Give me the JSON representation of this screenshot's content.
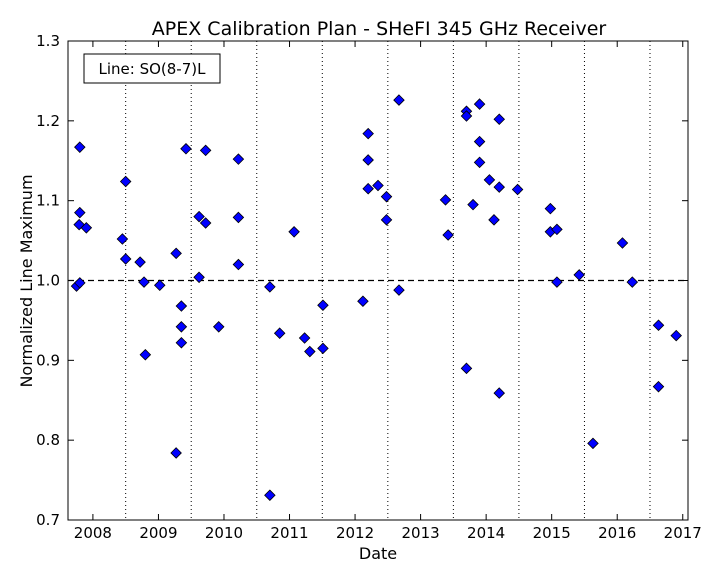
{
  "chart_data": {
    "type": "scatter",
    "title": "APEX Calibration Plan - SHeFI 345 GHz Receiver",
    "xlabel": "Date",
    "ylabel": "Normalized Line Maximum",
    "legend_box": "Line: SO(8-7)L",
    "legend_placement": "top-left",
    "xlim": [
      2007.62,
      2017.08
    ],
    "ylim": [
      0.7,
      1.3
    ],
    "x_ticks": [
      2008,
      2009,
      2010,
      2011,
      2012,
      2013,
      2014,
      2015,
      2016,
      2017
    ],
    "x_tick_labels": [
      "2008",
      "2009",
      "2010",
      "2011",
      "2012",
      "2013",
      "2014",
      "2015",
      "2016",
      "2017"
    ],
    "y_ticks": [
      0.7,
      0.8,
      0.9,
      1.0,
      1.1,
      1.2,
      1.3
    ],
    "y_tick_labels": [
      "0.7",
      "0.8",
      "0.9",
      "1.0",
      "1.1",
      "1.2",
      "1.3"
    ],
    "vertical_dotted_lines": [
      2008.5,
      2009.5,
      2010.5,
      2011.5,
      2012.5,
      2013.5,
      2014.5,
      2015.5,
      2016.5
    ],
    "reference_line": {
      "y": 1.0,
      "style": "dashed"
    },
    "grid": false,
    "marker": "diamond",
    "marker_color": "#0000ff",
    "points": [
      {
        "x": 2007.75,
        "y": 0.993
      },
      {
        "x": 2007.8,
        "y": 0.997
      },
      {
        "x": 2007.79,
        "y": 1.07
      },
      {
        "x": 2007.8,
        "y": 1.085
      },
      {
        "x": 2007.8,
        "y": 1.167
      },
      {
        "x": 2007.9,
        "y": 1.066
      },
      {
        "x": 2008.45,
        "y": 1.052
      },
      {
        "x": 2008.5,
        "y": 1.124
      },
      {
        "x": 2008.5,
        "y": 1.027
      },
      {
        "x": 2008.72,
        "y": 1.023
      },
      {
        "x": 2008.78,
        "y": 0.998
      },
      {
        "x": 2008.8,
        "y": 0.907
      },
      {
        "x": 2009.02,
        "y": 0.994
      },
      {
        "x": 2009.27,
        "y": 1.034
      },
      {
        "x": 2009.27,
        "y": 0.784
      },
      {
        "x": 2009.35,
        "y": 0.968
      },
      {
        "x": 2009.35,
        "y": 0.942
      },
      {
        "x": 2009.35,
        "y": 0.922
      },
      {
        "x": 2009.42,
        "y": 1.165
      },
      {
        "x": 2009.62,
        "y": 1.08
      },
      {
        "x": 2009.62,
        "y": 1.004
      },
      {
        "x": 2009.72,
        "y": 1.163
      },
      {
        "x": 2009.72,
        "y": 1.072
      },
      {
        "x": 2009.92,
        "y": 0.942
      },
      {
        "x": 2010.22,
        "y": 1.152
      },
      {
        "x": 2010.22,
        "y": 1.079
      },
      {
        "x": 2010.22,
        "y": 1.02
      },
      {
        "x": 2010.7,
        "y": 0.992
      },
      {
        "x": 2010.7,
        "y": 0.731
      },
      {
        "x": 2010.85,
        "y": 0.934
      },
      {
        "x": 2011.07,
        "y": 1.061
      },
      {
        "x": 2011.23,
        "y": 0.928
      },
      {
        "x": 2011.31,
        "y": 0.911
      },
      {
        "x": 2011.51,
        "y": 0.969
      },
      {
        "x": 2011.51,
        "y": 0.915
      },
      {
        "x": 2012.12,
        "y": 0.974
      },
      {
        "x": 2012.2,
        "y": 1.184
      },
      {
        "x": 2012.2,
        "y": 1.151
      },
      {
        "x": 2012.2,
        "y": 1.115
      },
      {
        "x": 2012.35,
        "y": 1.119
      },
      {
        "x": 2012.48,
        "y": 1.105
      },
      {
        "x": 2012.48,
        "y": 1.076
      },
      {
        "x": 2012.67,
        "y": 1.226
      },
      {
        "x": 2012.67,
        "y": 0.988
      },
      {
        "x": 2013.38,
        "y": 1.101
      },
      {
        "x": 2013.42,
        "y": 1.057
      },
      {
        "x": 2013.7,
        "y": 1.212
      },
      {
        "x": 2013.7,
        "y": 1.206
      },
      {
        "x": 2013.7,
        "y": 0.89
      },
      {
        "x": 2013.8,
        "y": 1.095
      },
      {
        "x": 2013.9,
        "y": 1.221
      },
      {
        "x": 2013.9,
        "y": 1.174
      },
      {
        "x": 2013.9,
        "y": 1.148
      },
      {
        "x": 2014.05,
        "y": 1.126
      },
      {
        "x": 2014.12,
        "y": 1.076
      },
      {
        "x": 2014.2,
        "y": 1.202
      },
      {
        "x": 2014.2,
        "y": 1.117
      },
      {
        "x": 2014.2,
        "y": 0.859
      },
      {
        "x": 2014.48,
        "y": 1.114
      },
      {
        "x": 2014.98,
        "y": 1.09
      },
      {
        "x": 2014.98,
        "y": 1.061
      },
      {
        "x": 2015.08,
        "y": 1.064
      },
      {
        "x": 2015.08,
        "y": 0.998
      },
      {
        "x": 2015.42,
        "y": 1.007
      },
      {
        "x": 2015.63,
        "y": 0.796
      },
      {
        "x": 2016.08,
        "y": 1.047
      },
      {
        "x": 2016.23,
        "y": 0.998
      },
      {
        "x": 2016.63,
        "y": 0.944
      },
      {
        "x": 2016.63,
        "y": 0.867
      },
      {
        "x": 2016.9,
        "y": 0.931
      }
    ]
  }
}
